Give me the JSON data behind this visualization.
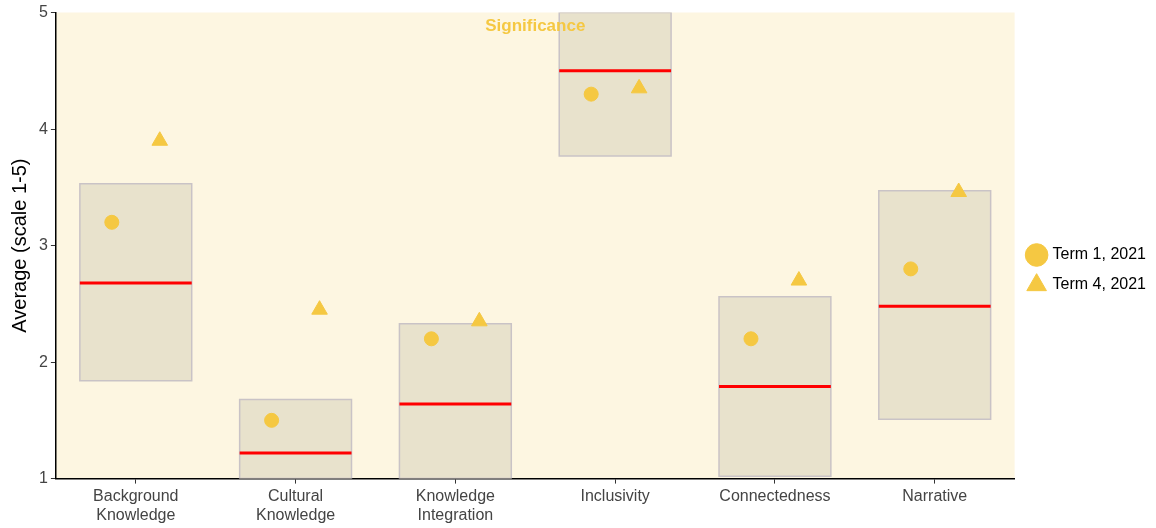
{
  "chart_data": {
    "type": "box",
    "title": "Significance",
    "ylabel": "Average (scale 1-5)",
    "categories": [
      "Background Knowledge",
      "Cultural Knowledge",
      "Knowledge Integration",
      "Inclusivity",
      "Connectedness",
      "Narrative"
    ],
    "color": "#e8e2cc",
    "boxes": [
      {
        "low": 1.84,
        "q1": 1.84,
        "median": 2.68,
        "q3": 3.53,
        "high": 3.53
      },
      {
        "low": 1,
        "q1": 1,
        "median": 1.22,
        "q3": 1.68,
        "high": 1.68
      },
      {
        "low": 1,
        "q1": 1,
        "median": 1.64,
        "q3": 2.33,
        "high": 2.33
      },
      {
        "low": 3.77,
        "q1": 3.77,
        "median": 4.5,
        "q3": 5,
        "high": 5
      },
      {
        "low": 1.02,
        "q1": 1.02,
        "median": 1.79,
        "q3": 2.56,
        "high": 2.56
      },
      {
        "low": 1.51,
        "q1": 1.51,
        "median": 2.48,
        "q3": 3.47,
        "high": 3.47
      }
    ],
    "series": [
      {
        "name": "Term 1, 2021",
        "type": "scatter",
        "marker": "circle",
        "color": "#f5c842",
        "x": [
          "Background Knowledge",
          "Cultural Knowledge",
          "Knowledge Integration",
          "Inclusivity",
          "Connectedness",
          "Narrative"
        ],
        "values": [
          3.2,
          1.5,
          2.2,
          4.3,
          2.2,
          2.8
        ]
      },
      {
        "name": "Term 4, 2021",
        "type": "scatter",
        "marker": "triangle",
        "color": "#f5c842",
        "x": [
          "Background Knowledge",
          "Cultural Knowledge",
          "Knowledge Integration",
          "Inclusivity",
          "Connectedness",
          "Narrative"
        ],
        "values": [
          3.9,
          2.45,
          2.35,
          4.35,
          2.7,
          3.46
        ]
      }
    ],
    "ylim": [
      1,
      5
    ],
    "yticks": [
      1,
      2,
      3,
      4,
      5
    ],
    "grid": false,
    "legend": "right"
  }
}
